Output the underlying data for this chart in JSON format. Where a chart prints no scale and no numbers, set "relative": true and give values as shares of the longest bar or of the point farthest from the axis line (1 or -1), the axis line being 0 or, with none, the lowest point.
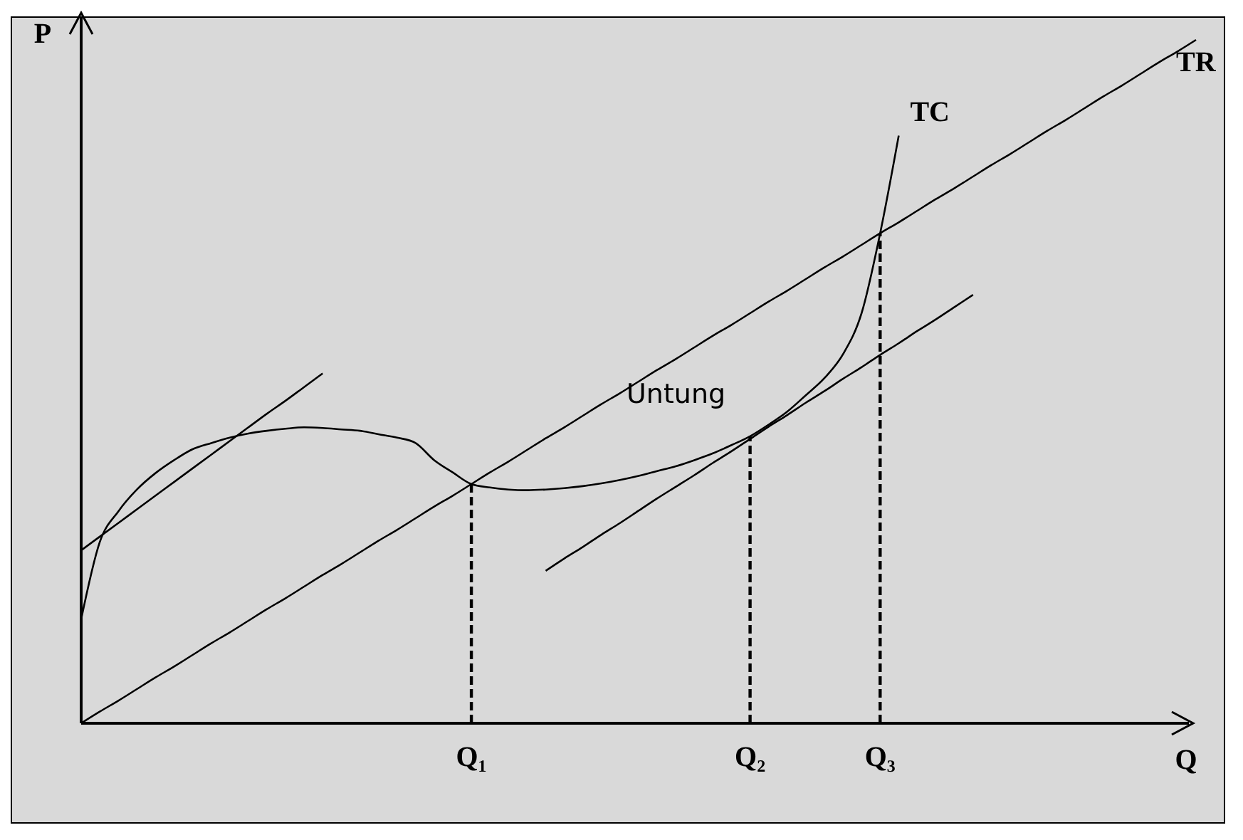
{
  "chart_data": {
    "type": "line",
    "relative": true,
    "xlabel": "Q",
    "ylabel": "P",
    "categories": [
      null,
      null,
      null,
      null,
      null,
      null,
      null,
      null,
      null,
      null,
      null,
      null,
      null,
      null,
      null,
      null,
      null,
      null,
      null,
      null,
      null,
      "Q₁",
      null,
      null,
      null,
      null,
      null,
      null,
      null,
      null,
      null,
      null,
      null,
      null,
      null,
      null,
      "Q₂",
      null,
      null,
      null,
      null,
      null,
      null,
      "Q₃",
      null,
      null,
      null,
      null,
      null,
      null,
      null,
      null,
      null,
      null,
      null,
      null,
      null,
      null,
      null,
      null,
      null
    ],
    "grid": false,
    "annotations": [
      "Untung"
    ],
    "ref_lines": [
      {
        "axis": "x",
        "value": "Q₁",
        "line_style": "dashed",
        "color": "#000000"
      },
      {
        "axis": "x",
        "value": "Q₂",
        "line_style": "dashed",
        "color": "#000000"
      },
      {
        "axis": "x",
        "value": "Q₃",
        "line_style": "dashed",
        "color": "#000000"
      }
    ],
    "series": [
      {
        "name": "TR",
        "color": "#000000",
        "values": [
          0,
          0.017,
          0.033,
          0.05,
          0.067,
          0.083,
          0.1,
          0.117,
          0.133,
          0.15,
          0.167,
          0.183,
          0.2,
          0.217,
          0.233,
          0.25,
          0.267,
          0.283,
          0.3,
          0.317,
          0.333,
          0.35,
          0.367,
          0.383,
          0.4,
          0.417,
          0.433,
          0.45,
          0.467,
          0.483,
          0.5,
          0.517,
          0.533,
          0.55,
          0.567,
          0.583,
          0.6,
          0.617,
          0.633,
          0.65,
          0.667,
          0.683,
          0.7,
          0.717,
          0.733,
          0.75,
          0.767,
          0.783,
          0.8,
          0.817,
          0.833,
          0.85,
          0.867,
          0.883,
          0.9,
          0.917,
          0.933,
          0.95,
          0.967,
          0.983,
          1
        ]
      },
      {
        "name": "TC",
        "color": "#000000",
        "values": [
          0.152,
          0.265,
          0.31,
          0.342,
          0.366,
          0.385,
          0.401,
          0.41,
          0.418,
          0.424,
          0.428,
          0.431,
          0.433,
          0.432,
          0.43,
          0.428,
          0.423,
          0.418,
          0.41,
          0.385,
          0.367,
          0.35,
          0.345,
          0.342,
          0.341,
          0.342,
          0.344,
          0.347,
          0.351,
          0.356,
          0.362,
          0.369,
          0.376,
          0.385,
          0.395,
          0.407,
          0.42,
          0.437,
          0.456,
          0.48,
          0.505,
          0.54,
          0.6,
          0.717,
          0.86,
          null,
          null,
          null,
          null,
          null,
          null,
          null,
          null,
          null,
          null,
          null,
          null,
          null,
          null,
          null,
          null
        ]
      },
      {
        "color": "#000000",
        "values": [
          0.253,
          0.273,
          0.293,
          0.313,
          0.333,
          0.353,
          0.373,
          0.393,
          0.413,
          0.433,
          0.453,
          0.472,
          0.492,
          0.512,
          null,
          null,
          null,
          null,
          null,
          null,
          null,
          null,
          null,
          null,
          null,
          null,
          null,
          null,
          null,
          null,
          null,
          null,
          null,
          null,
          null,
          null,
          null,
          null,
          null,
          null,
          null,
          null,
          null,
          null,
          null,
          null,
          null,
          null,
          null,
          null,
          null,
          null,
          null,
          null,
          null,
          null,
          null,
          null,
          null,
          null,
          null
        ]
      },
      {
        "color": "#000000",
        "values": [
          null,
          null,
          null,
          null,
          null,
          null,
          null,
          null,
          null,
          null,
          null,
          null,
          null,
          null,
          null,
          null,
          null,
          null,
          null,
          null,
          null,
          null,
          null,
          null,
          null,
          0.223,
          0.241,
          0.258,
          0.276,
          0.293,
          0.311,
          0.329,
          0.346,
          0.363,
          0.381,
          0.398,
          0.416,
          0.434,
          0.451,
          0.469,
          0.486,
          0.504,
          0.521,
          0.539,
          0.556,
          0.574,
          0.591,
          0.609,
          0.627,
          null,
          null,
          null,
          null,
          null,
          null,
          null,
          null,
          null,
          null,
          null,
          null
        ]
      }
    ]
  }
}
